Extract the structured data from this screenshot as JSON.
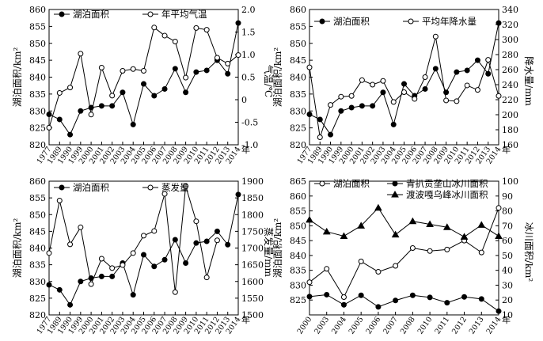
{
  "chart_data": [
    {
      "type": "line",
      "x": [
        "1977",
        "1989",
        "1990",
        "1999",
        "2000",
        "2001",
        "2002",
        "2003",
        "2004",
        "2005",
        "2006",
        "2007",
        "2008",
        "2009",
        "2010",
        "2011",
        "2012",
        "2013",
        "2014"
      ],
      "x_suffix": "年",
      "ylabel_left": "湖泊面积/km²",
      "ylabel_right": "气温/℃",
      "ylim_left": [
        820,
        860
      ],
      "ylim_right": [
        -1.0,
        2.0
      ],
      "left_ticks": [
        820,
        825,
        830,
        835,
        840,
        845,
        850,
        855,
        860
      ],
      "right_ticks": [
        "-1.0",
        "-0.5",
        "0",
        "0.5",
        "1.0",
        "1.5",
        "2.0"
      ],
      "series": [
        {
          "name": "湖泊面积",
          "axis": "left",
          "marker": "filled",
          "values": [
            829,
            827.5,
            823,
            830,
            831,
            831.5,
            831.5,
            835.5,
            826,
            838,
            834.5,
            836.5,
            842.5,
            835.5,
            841.5,
            842,
            845,
            841,
            856
          ]
        },
        {
          "name": "年平均气温",
          "axis": "right",
          "marker": "open",
          "values": [
            -0.62,
            0.15,
            0.27,
            1.02,
            -0.33,
            0.71,
            0.09,
            0.64,
            0.68,
            0.64,
            1.6,
            1.42,
            1.29,
            0.49,
            1.59,
            1.55,
            0.93,
            0.8,
            0.99
          ]
        }
      ]
    },
    {
      "type": "line",
      "x": [
        "1977",
        "1989",
        "1990",
        "1999",
        "2000",
        "2001",
        "2002",
        "2003",
        "2004",
        "2005",
        "2006",
        "2007",
        "2008",
        "2009",
        "2010",
        "2011",
        "2012",
        "2013",
        "2014"
      ],
      "x_suffix": "年",
      "ylabel_left": "湖泊面积/km²",
      "ylabel_right": "降水量/mm",
      "ylim_left": [
        820,
        860
      ],
      "ylim_right": [
        160,
        340
      ],
      "left_ticks": [
        820,
        825,
        830,
        835,
        840,
        845,
        850,
        855,
        860
      ],
      "right_ticks": [
        "160",
        "180",
        "200",
        "220",
        "240",
        "260",
        "280",
        "300",
        "320",
        "340"
      ],
      "series": [
        {
          "name": "湖泊面积",
          "axis": "left",
          "marker": "filled",
          "values": [
            829,
            827.5,
            823,
            830,
            831,
            831.5,
            831.5,
            835.5,
            826,
            838,
            834.5,
            836.5,
            842.5,
            835.5,
            841.5,
            842,
            845,
            841,
            856
          ]
        },
        {
          "name": "平均年降水量",
          "axis": "right",
          "marker": "open",
          "values": [
            263,
            170,
            213,
            224,
            225,
            246,
            240,
            245,
            217,
            230,
            221,
            250,
            304,
            219,
            218,
            239,
            233,
            273,
            225
          ]
        }
      ]
    },
    {
      "type": "line",
      "x": [
        "1977",
        "1989",
        "1990",
        "1999",
        "2000",
        "2001",
        "2002",
        "2003",
        "2004",
        "2005",
        "2006",
        "2007",
        "2008",
        "2009",
        "2010",
        "2011",
        "2012",
        "2013",
        "2014"
      ],
      "x_suffix": "年",
      "ylabel_left": "湖泊面积/km²",
      "ylabel_right": "蒸发量/mm",
      "ylim_left": [
        820,
        860
      ],
      "ylim_right": [
        1500,
        1900
      ],
      "left_ticks": [
        820,
        825,
        830,
        835,
        840,
        845,
        850,
        855,
        860
      ],
      "right_ticks": [
        "1500",
        "1550",
        "1600",
        "1650",
        "1700",
        "1750",
        "1800",
        "1850",
        "1900"
      ],
      "series": [
        {
          "name": "湖泊面积",
          "axis": "left",
          "marker": "filled",
          "values": [
            829,
            827.5,
            823,
            830,
            831,
            831.5,
            831.5,
            835.5,
            826,
            838,
            834.5,
            836.5,
            842.5,
            835.5,
            841.5,
            842,
            845,
            841,
            856
          ]
        },
        {
          "name": "蒸发量",
          "axis": "right",
          "marker": "open",
          "values": [
            1685,
            1842,
            1711,
            1762,
            1592,
            1668,
            1640,
            1649,
            1685,
            1737,
            1751,
            1862,
            1568,
            1885,
            1780,
            1612,
            1723,
            null,
            null
          ]
        }
      ]
    },
    {
      "type": "line",
      "x": [
        "2000",
        "2003",
        "2004",
        "2005",
        "2006",
        "2007",
        "2008",
        "2010",
        "2011",
        "2012",
        "2013",
        "2014"
      ],
      "x_suffix": "年",
      "ylabel_left": "湖泊面积/km²",
      "ylabel_right": "冰川面积/km²",
      "ylim_left": [
        820,
        865
      ],
      "ylim_right": [
        10,
        100
      ],
      "left_ticks": [
        825,
        830,
        835,
        840,
        845,
        850,
        855,
        860,
        865
      ],
      "right_ticks": [
        "10",
        "20",
        "30",
        "40",
        "50",
        "60",
        "70",
        "80",
        "90",
        "100"
      ],
      "series": [
        {
          "name": "湖泊面积",
          "axis": "left",
          "marker": "open",
          "values": [
            831,
            835.5,
            826,
            838,
            834.5,
            836.5,
            842.5,
            841.5,
            842,
            845,
            841,
            856
          ]
        },
        {
          "name": "青扒贡垄山冰川面积",
          "axis": "right",
          "marker": "filled",
          "values": [
            22.3,
            23.6,
            16.8,
            23.2,
            15.4,
            19.7,
            23.2,
            21.8,
            18.2,
            22.1,
            20.7,
            12.5
          ]
        },
        {
          "name": "渡波嘎乌峰冰川面积",
          "axis": "right",
          "marker": "triangle",
          "values": [
            74,
            66,
            63,
            70,
            82,
            64,
            73,
            71,
            69,
            62.5,
            70.5,
            63
          ]
        }
      ]
    }
  ]
}
